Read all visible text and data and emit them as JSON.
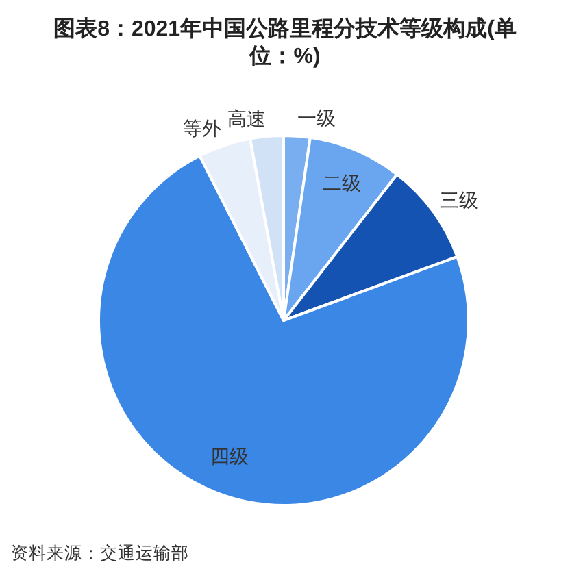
{
  "chart_data": {
    "type": "pie",
    "title": "图表8：2021年中国公路里程分技术等级构成(单位：%)",
    "categories": [
      "一级",
      "二级",
      "三级",
      "四级",
      "等外",
      "高速"
    ],
    "values": [
      2.3,
      8.2,
      8.9,
      73.1,
      4.6,
      2.9
    ],
    "colors": [
      "#79aef0",
      "#6aa6f0",
      "#1553b3",
      "#3b87e6",
      "#e6effa",
      "#d1e2f7"
    ],
    "annotations": [
      "资料来源：交通运输部"
    ]
  }
}
